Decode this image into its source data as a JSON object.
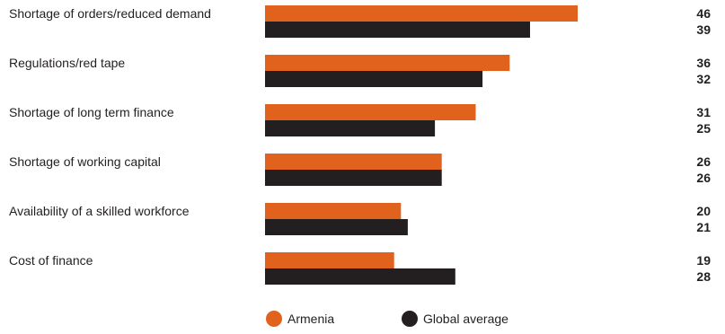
{
  "chart_data": {
    "type": "bar",
    "orientation": "horizontal",
    "categories": [
      "Shortage of orders/reduced demand",
      "Regulations/red tape",
      "Shortage of long term finance",
      "Shortage of working capital",
      "Availability of a skilled workforce",
      "Cost of finance"
    ],
    "series": [
      {
        "name": "Armenia",
        "color": "#e0621c",
        "values": [
          46,
          36,
          31,
          26,
          20,
          19
        ]
      },
      {
        "name": "Global average",
        "color": "#231f20",
        "values": [
          39,
          32,
          25,
          26,
          21,
          28
        ]
      }
    ],
    "value_labels": [
      [
        "46",
        "39"
      ],
      [
        "36",
        "32"
      ],
      [
        "31",
        "25"
      ],
      [
        "26",
        "26"
      ],
      [
        "20",
        "21"
      ],
      [
        "19",
        "28"
      ]
    ],
    "xlim": [
      0,
      60
    ],
    "grid": false,
    "legend_position": "bottom"
  }
}
